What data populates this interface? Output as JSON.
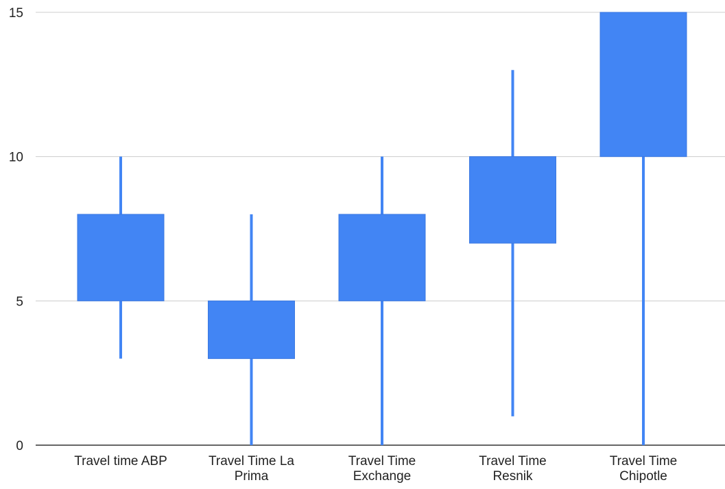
{
  "chart_data": {
    "type": "candlestick",
    "title": "",
    "xlabel": "",
    "ylabel": "",
    "ylim": [
      0,
      15
    ],
    "y_ticks": [
      "0",
      "5",
      "10",
      "15"
    ],
    "grid": true,
    "legend": "none",
    "color": "#4285f4",
    "categories": [
      [
        "Travel time ABP"
      ],
      [
        "Travel Time La",
        "Prima"
      ],
      [
        "Travel Time",
        "Exchange"
      ],
      [
        "Travel Time",
        "Resnik"
      ],
      [
        "Travel Time",
        "Chipotle"
      ]
    ],
    "series": [
      {
        "low": 3,
        "open": 5,
        "close": 8,
        "high": 10
      },
      {
        "low": 0,
        "open": 3,
        "close": 5,
        "high": 8
      },
      {
        "low": 0,
        "open": 5,
        "close": 8,
        "high": 10
      },
      {
        "low": 1,
        "open": 7,
        "close": 10,
        "high": 13
      },
      {
        "low": 0,
        "open": 10,
        "close": 15,
        "high": 15
      }
    ]
  }
}
